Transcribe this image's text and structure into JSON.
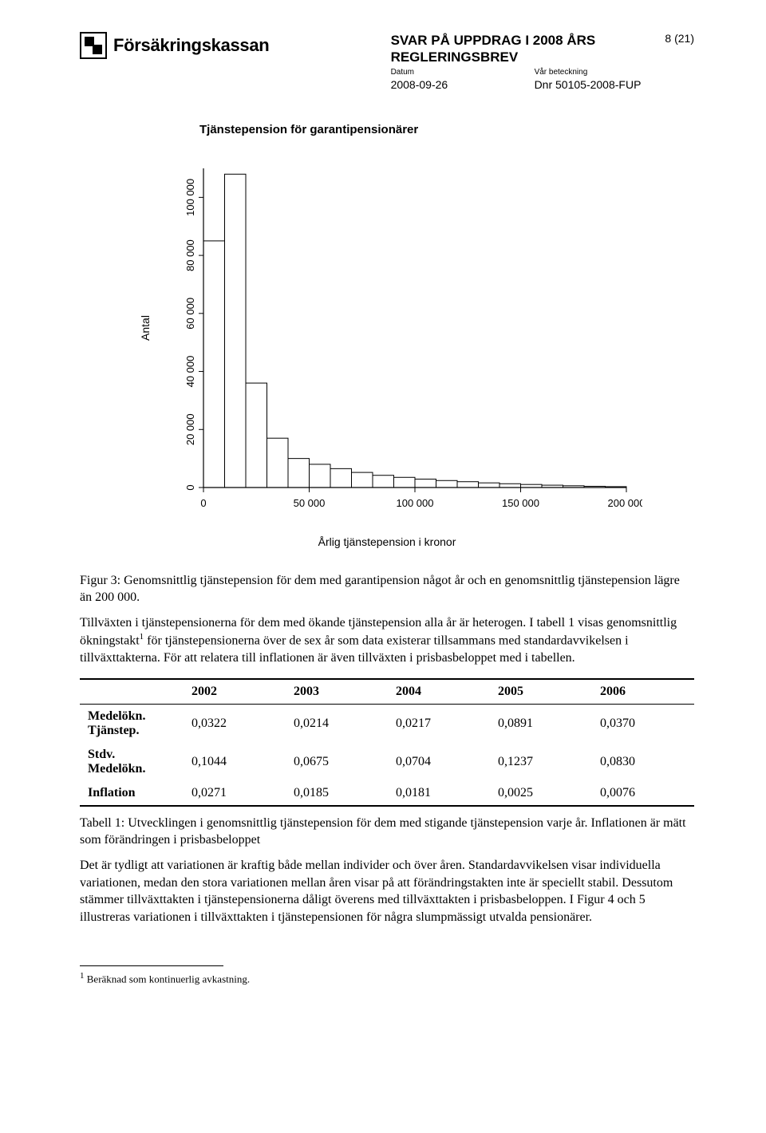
{
  "header": {
    "brand": "Försäkringskassan",
    "title_line1": "SVAR PÅ UPPDRAG I 2008 ÅRS",
    "title_line2": "REGLERINGSBREV",
    "datum_label": "Datum",
    "datum_value": "2008-09-26",
    "beteckning_label": "Vår beteckning",
    "beteckning_value": "Dnr 50105-2008-FUP",
    "page_number": "8 (21)"
  },
  "chart": {
    "title": "Tjänstepension för garantipensionärer",
    "type": "histogram",
    "xlabel": "Årlig tjänstepension i kronor",
    "ylabel": "Antal",
    "xlim": [
      0,
      200000
    ],
    "ylim": [
      0,
      110000
    ],
    "x_ticks": [
      0,
      50000,
      100000,
      150000,
      200000
    ],
    "x_tick_labels": [
      "0",
      "50 000",
      "100 000",
      "150 000",
      "200 000"
    ],
    "y_ticks": [
      0,
      20000,
      40000,
      60000,
      80000,
      100000
    ],
    "y_tick_labels": [
      "0",
      "20 000",
      "40 000",
      "60 000",
      "80 000",
      "100 000"
    ],
    "bin_width": 10000,
    "bars": [
      85000,
      108000,
      36000,
      17000,
      10000,
      8000,
      6500,
      5200,
      4200,
      3500,
      2900,
      2400,
      2000,
      1600,
      1300,
      1050,
      800,
      600,
      420,
      300
    ],
    "bar_fill": "#ffffff",
    "bar_stroke": "#000000",
    "axis_color": "#000000",
    "background_color": "#ffffff",
    "axis_fontsize": 13,
    "label_fontsize": 14,
    "font_family": "Arial"
  },
  "figure_caption": "Figur 3: Genomsnittlig tjänstepension för dem med garantipension något år och en genomsnittlig tjänstepension lägre än 200 000.",
  "para1": "Tillväxten i tjänstepensionerna för dem med ökande tjänstepension alla år är heterogen. I tabell 1 visas genomsnittlig ökningstakt",
  "para1_sup": "1",
  "para1_cont": " för tjänstepensionerna över de sex år som data existerar tillsammans med standardavvikelsen i tillväxttakterna. För att relatera till inflationen är även tillväxten i prisbasbeloppet med i tabellen.",
  "table": {
    "columns": [
      "2002",
      "2003",
      "2004",
      "2005",
      "2006"
    ],
    "rows": [
      {
        "label": "Medelökn. Tjänstep.",
        "values": [
          "0,0322",
          "0,0214",
          "0,0217",
          "0,0891",
          "0,0370"
        ]
      },
      {
        "label": "Stdv. Medelökn.",
        "values": [
          "0,1044",
          "0,0675",
          "0,0704",
          "0,1237",
          "0,0830"
        ]
      },
      {
        "label": "Inflation",
        "values": [
          "0,0271",
          "0,0185",
          "0,0181",
          "0,0025",
          "0,0076"
        ]
      }
    ],
    "col_width_rh": 130
  },
  "table_caption": "Tabell 1: Utvecklingen i genomsnittlig tjänstepension för dem med stigande tjänstepension varje år. Inflationen är mätt som förändringen i prisbasbeloppet",
  "para2": "Det är tydligt att variationen är kraftig både mellan individer och över åren. Standardavvikelsen visar individuella variationen, medan den stora variationen mellan åren visar på att förändringstakten inte är speciellt stabil. Dessutom stämmer tillväxttakten i tjänstepensionerna dåligt överens med tillväxttakten i prisbasbeloppen. I Figur 4 och 5 illustreras variationen i tillväxttakten i tjänstepensionen för några slumpmässigt utvalda pensionärer.",
  "footnote_marker": "1",
  "footnote_text": " Beräknad som kontinuerlig avkastning."
}
